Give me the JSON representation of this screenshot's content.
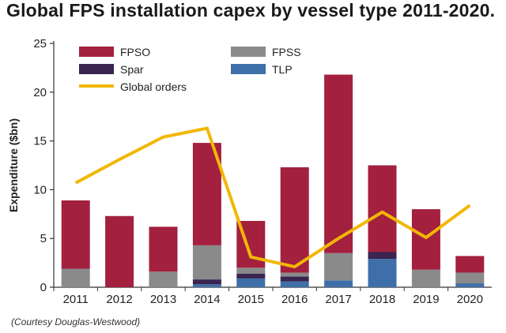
{
  "header": {
    "title": "Global FPS installation capex by vessel type 2011-2020.",
    "credit": "(Courtesy Douglas-Westwood)"
  },
  "colors": {
    "FPSO": "#a3203f",
    "FPSS": "#8a8a8a",
    "Spar": "#3a2450",
    "TLP": "#3f6fa8",
    "Global orders": "#f2b705",
    "axis": "#333333"
  },
  "chart_data": {
    "type": "bar",
    "stacked": true,
    "categories": [
      "2011",
      "2012",
      "2013",
      "2014",
      "2015",
      "2016",
      "2017",
      "2018",
      "2019",
      "2020"
    ],
    "ylabel": "Expenditure ($bn)",
    "xlabel": "",
    "ylim": [
      0,
      25
    ],
    "yticks": [
      "0",
      "5",
      "10",
      "15",
      "20",
      "25"
    ],
    "grid": false,
    "legend_position": "top-left",
    "series": [
      {
        "name": "TLP",
        "values": [
          0,
          0,
          0,
          0.3,
          0.9,
          0.6,
          0.7,
          2.9,
          0,
          0.4
        ]
      },
      {
        "name": "Spar",
        "values": [
          0,
          0,
          0,
          0.5,
          0.5,
          0.5,
          0,
          0.7,
          0,
          0
        ]
      },
      {
        "name": "FPSS",
        "values": [
          1.9,
          0,
          1.6,
          3.5,
          0.6,
          0.4,
          2.8,
          0,
          1.8,
          1.1
        ]
      },
      {
        "name": "FPSO",
        "values": [
          7.0,
          7.3,
          4.6,
          10.5,
          4.8,
          10.8,
          18.3,
          8.9,
          6.2,
          1.7
        ]
      }
    ],
    "line_series": {
      "name": "Global orders",
      "values": [
        10.7,
        13.1,
        15.4,
        16.3,
        3.1,
        2.1,
        5.0,
        7.7,
        5.1,
        8.4
      ]
    }
  }
}
